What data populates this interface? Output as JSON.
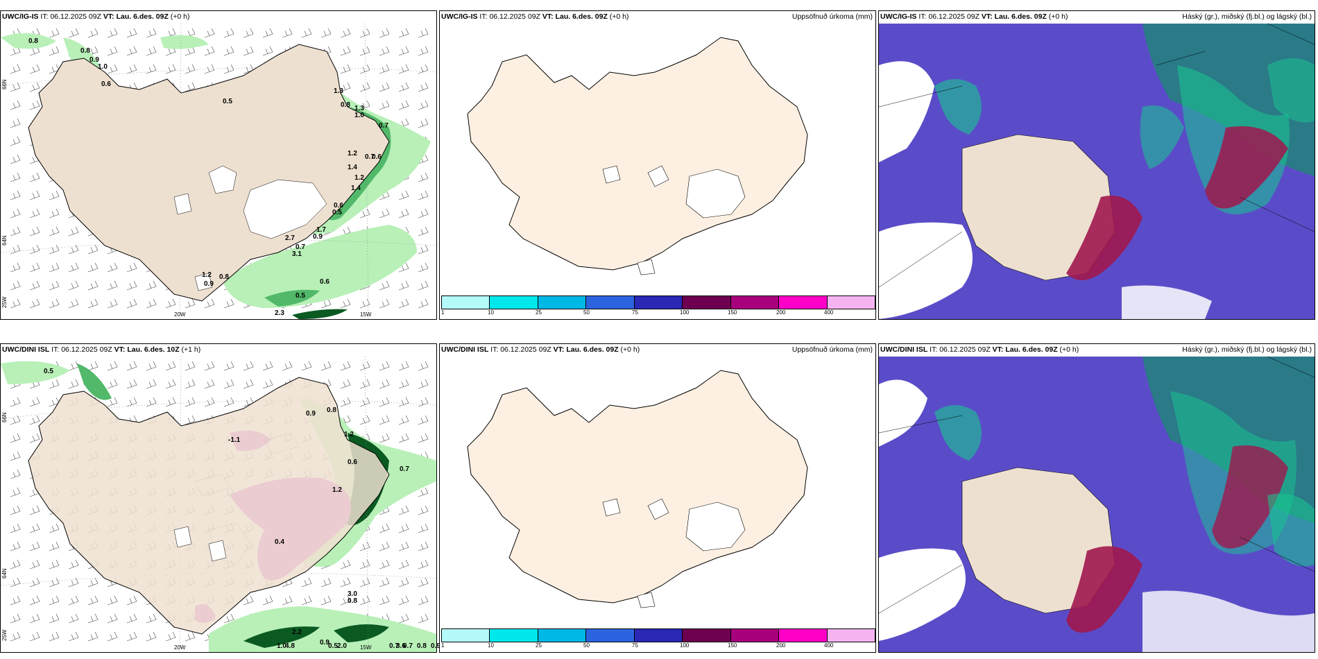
{
  "panels": [
    {
      "model": "UWC/IG-IS",
      "it_label": "IT:",
      "it": "06.12.2025 09Z",
      "vt_label": "VT:",
      "vt": "Lau. 6.des. 09Z",
      "lead": "(+0 h)",
      "right_title": "",
      "grid_labels": {
        "w20": "20W",
        "w15": "15W",
        "n66": "66N",
        "n64": "64N",
        "n25w": "25W"
      },
      "values": [
        "0.8",
        "0.8",
        "0.9",
        "1.0",
        "0.6",
        "0.5",
        "1.3",
        "0.8",
        "1.3",
        "1.0",
        "0.7",
        "1.2",
        "0.7",
        "1.4",
        "0.6",
        "1.2",
        "1.4",
        "0.6",
        "0.5",
        "1.7",
        "0.9",
        "2.7",
        "0.7",
        "3.1",
        "1.2",
        "0.8",
        "0.9",
        "0.6",
        "0.5",
        "2.3"
      ]
    },
    {
      "model": "UWC/IG-IS",
      "it_label": "IT:",
      "it": "06.12.2025 09Z",
      "vt_label": "VT:",
      "vt": "Lau. 6.des. 09Z",
      "lead": "(+0 h)",
      "right_title": "Uppsöfnuð úrkoma (mm)"
    },
    {
      "model": "UWC/IG-IS",
      "it_label": "IT:",
      "it": "06.12.2025 09Z",
      "vt_label": "VT:",
      "vt": "Lau. 6.des. 09Z",
      "lead": "(+0 h)",
      "right_title": "Háský (gr.), miðský (fj.bl.) og lágský (bl.)"
    },
    {
      "model": "UWC/DINI ISL",
      "it_label": "IT:",
      "it": "06.12.2025 09Z",
      "vt_label": "VT:",
      "vt": "Lau. 6.des. 10Z",
      "lead": "(+1 h)",
      "right_title": "",
      "grid_labels": {
        "w20": "20W",
        "w15": "15W",
        "n66": "66N",
        "n64": "64N",
        "n25w": "25W"
      },
      "values": [
        "0.5",
        "-1.1",
        "0.9",
        "0.8",
        "1.2",
        "0.6",
        "0.7",
        "1.2",
        "0.4",
        "3.0",
        "0.8",
        "2.2",
        "0.9",
        "4.8",
        "1.0",
        "3.6",
        "2.0",
        "0.5",
        "0.7",
        "0.7",
        "0.8",
        "0.9"
      ]
    },
    {
      "model": "UWC/DINI ISL",
      "it_label": "IT:",
      "it": "06.12.2025 09Z",
      "vt_label": "VT:",
      "vt": "Lau. 6.des. 09Z",
      "lead": "(+0 h)",
      "right_title": "Uppsöfnuð úrkoma (mm)"
    },
    {
      "model": "UWC/DINI ISL",
      "it_label": "IT:",
      "it": "06.12.2025 09Z",
      "vt_label": "VT:",
      "vt": "Lau. 6.des. 09Z",
      "lead": "(+0 h)",
      "right_title": "Háský (gr.), miðský (fj.bl.) og lágský (bl.)"
    }
  ],
  "colorbar": {
    "labels": [
      "1",
      "10",
      "25",
      "50",
      "75",
      "100",
      "150",
      "200",
      "400"
    ],
    "colors": [
      "#b4fafa",
      "#00e8ec",
      "#00b8e6",
      "#2c64e0",
      "#2a28b4",
      "#6e0050",
      "#a8007c",
      "#ff00c8",
      "#f5b4f0"
    ]
  },
  "colors": {
    "land": "#eee0d0",
    "land_empty": "#fdf0e2",
    "rain_light": "#b8f0b8",
    "rain_mid": "#52b86a",
    "rain_dark": "#0a5a22",
    "snow": "#d45ad8",
    "cloud_high": "#18c890",
    "cloud_mid": "#6050d0",
    "cloud_low": "#a0184e",
    "cloud_teal": "#2a7a88"
  }
}
